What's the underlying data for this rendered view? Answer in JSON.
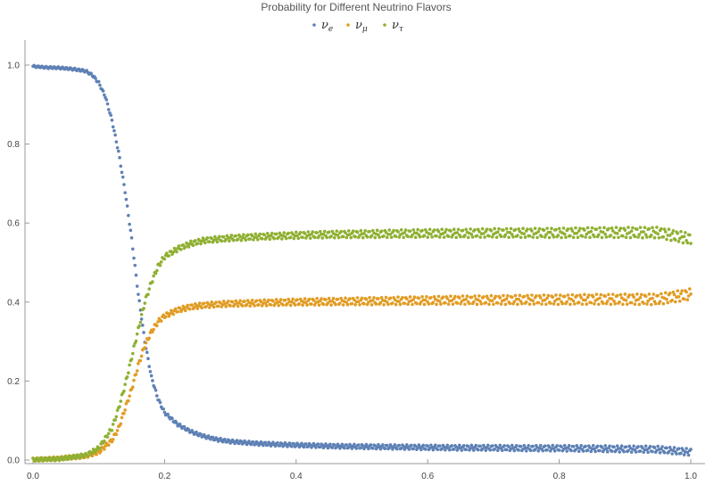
{
  "chart_data": {
    "type": "scatter",
    "title": "Probability for Different Neutrino Flavors",
    "xlim": [
      0.0,
      1.0
    ],
    "ylim": [
      0.0,
      1.0
    ],
    "x_ticks": [
      0.0,
      0.2,
      0.4,
      0.6,
      0.8,
      1.0
    ],
    "y_ticks": [
      0.0,
      0.2,
      0.4,
      0.6,
      0.8,
      1.0
    ],
    "x_tick_labels": [
      "0.0",
      "0.2",
      "0.4",
      "0.6",
      "0.8",
      "1.0"
    ],
    "y_tick_labels": [
      "0.0",
      "0.2",
      "0.4",
      "0.6",
      "0.8",
      "1.0"
    ],
    "grid": false,
    "legend_position": "top-center",
    "series": [
      {
        "name_base": "ν",
        "name_sub": "e",
        "color": "#5e81b5",
        "points": [
          [
            0.0,
            0.997
          ],
          [
            0.02,
            0.994
          ],
          [
            0.04,
            0.993
          ],
          [
            0.06,
            0.99
          ],
          [
            0.08,
            0.985
          ],
          [
            0.09,
            0.975
          ],
          [
            0.1,
            0.955
          ],
          [
            0.11,
            0.92
          ],
          [
            0.12,
            0.86
          ],
          [
            0.13,
            0.78
          ],
          [
            0.14,
            0.68
          ],
          [
            0.15,
            0.56
          ],
          [
            0.16,
            0.42
          ],
          [
            0.17,
            0.3
          ],
          [
            0.18,
            0.21
          ],
          [
            0.19,
            0.155
          ],
          [
            0.2,
            0.12
          ],
          [
            0.22,
            0.09
          ],
          [
            0.24,
            0.072
          ],
          [
            0.26,
            0.06
          ],
          [
            0.28,
            0.052
          ],
          [
            0.3,
            0.047
          ],
          [
            0.34,
            0.042
          ],
          [
            0.38,
            0.039
          ],
          [
            0.42,
            0.037
          ],
          [
            0.46,
            0.035
          ],
          [
            0.5,
            0.034
          ],
          [
            0.55,
            0.033
          ],
          [
            0.6,
            0.032
          ],
          [
            0.65,
            0.031
          ],
          [
            0.7,
            0.031
          ],
          [
            0.75,
            0.03
          ],
          [
            0.8,
            0.03
          ],
          [
            0.85,
            0.029
          ],
          [
            0.9,
            0.028
          ],
          [
            0.95,
            0.027
          ],
          [
            1.0,
            0.02
          ]
        ]
      },
      {
        "name_base": "ν",
        "name_sub": "μ",
        "color": "#e19c24",
        "points": [
          [
            0.0,
            0.001
          ],
          [
            0.04,
            0.004
          ],
          [
            0.08,
            0.01
          ],
          [
            0.1,
            0.02
          ],
          [
            0.12,
            0.05
          ],
          [
            0.13,
            0.08
          ],
          [
            0.14,
            0.13
          ],
          [
            0.15,
            0.18
          ],
          [
            0.16,
            0.24
          ],
          [
            0.17,
            0.29
          ],
          [
            0.18,
            0.325
          ],
          [
            0.19,
            0.35
          ],
          [
            0.2,
            0.365
          ],
          [
            0.22,
            0.38
          ],
          [
            0.24,
            0.388
          ],
          [
            0.26,
            0.392
          ],
          [
            0.3,
            0.396
          ],
          [
            0.35,
            0.398
          ],
          [
            0.4,
            0.4
          ],
          [
            0.45,
            0.401
          ],
          [
            0.5,
            0.402
          ],
          [
            0.55,
            0.403
          ],
          [
            0.6,
            0.404
          ],
          [
            0.65,
            0.405
          ],
          [
            0.7,
            0.405
          ],
          [
            0.75,
            0.406
          ],
          [
            0.8,
            0.406
          ],
          [
            0.85,
            0.407
          ],
          [
            0.9,
            0.407
          ],
          [
            0.95,
            0.407
          ],
          [
            1.0,
            0.42
          ]
        ]
      },
      {
        "name_base": "ν",
        "name_sub": "τ",
        "color": "#8fb032",
        "points": [
          [
            0.0,
            0.001
          ],
          [
            0.04,
            0.003
          ],
          [
            0.08,
            0.012
          ],
          [
            0.1,
            0.03
          ],
          [
            0.12,
            0.08
          ],
          [
            0.13,
            0.13
          ],
          [
            0.14,
            0.19
          ],
          [
            0.15,
            0.26
          ],
          [
            0.16,
            0.33
          ],
          [
            0.17,
            0.4
          ],
          [
            0.18,
            0.45
          ],
          [
            0.19,
            0.49
          ],
          [
            0.2,
            0.515
          ],
          [
            0.22,
            0.535
          ],
          [
            0.24,
            0.548
          ],
          [
            0.26,
            0.556
          ],
          [
            0.3,
            0.562
          ],
          [
            0.35,
            0.566
          ],
          [
            0.4,
            0.569
          ],
          [
            0.45,
            0.571
          ],
          [
            0.5,
            0.572
          ],
          [
            0.55,
            0.573
          ],
          [
            0.6,
            0.574
          ],
          [
            0.65,
            0.574
          ],
          [
            0.7,
            0.575
          ],
          [
            0.75,
            0.575
          ],
          [
            0.8,
            0.575
          ],
          [
            0.85,
            0.576
          ],
          [
            0.9,
            0.576
          ],
          [
            0.95,
            0.576
          ],
          [
            1.0,
            0.56
          ]
        ]
      }
    ]
  }
}
